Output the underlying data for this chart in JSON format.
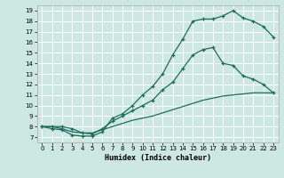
{
  "xlabel": "Humidex (Indice chaleur)",
  "bg_color": "#cce8e0",
  "grid_color": "#ffffff",
  "line_color": "#1e6b5e",
  "xlim": [
    -0.5,
    23.5
  ],
  "ylim": [
    6.5,
    19.5
  ],
  "xticks": [
    0,
    1,
    2,
    3,
    4,
    5,
    6,
    7,
    8,
    9,
    10,
    11,
    12,
    13,
    14,
    15,
    16,
    17,
    18,
    19,
    20,
    21,
    22,
    23
  ],
  "yticks": [
    7,
    8,
    9,
    10,
    11,
    12,
    13,
    14,
    15,
    16,
    17,
    18,
    19
  ],
  "curve1_x": [
    0,
    1,
    2,
    3,
    4,
    5,
    6,
    7,
    8,
    9,
    10,
    11,
    12,
    13,
    14,
    15,
    16,
    17,
    18,
    19,
    20,
    21,
    22,
    23
  ],
  "curve1_y": [
    8.0,
    7.8,
    7.7,
    7.2,
    7.1,
    7.1,
    7.5,
    8.8,
    9.2,
    10.0,
    11.0,
    11.8,
    13.0,
    14.8,
    16.3,
    18.0,
    18.2,
    18.2,
    18.5,
    19.0,
    18.3,
    18.0,
    17.5,
    16.5
  ],
  "curve2_x": [
    0,
    1,
    2,
    3,
    4,
    5,
    6,
    7,
    8,
    9,
    10,
    11,
    12,
    13,
    14,
    15,
    16,
    17,
    18,
    19,
    20,
    21,
    22,
    23
  ],
  "curve2_y": [
    8.0,
    8.0,
    8.0,
    7.8,
    7.4,
    7.3,
    7.8,
    8.5,
    9.0,
    9.5,
    10.0,
    10.5,
    11.5,
    12.2,
    13.5,
    14.8,
    15.3,
    15.5,
    14.0,
    13.8,
    12.8,
    12.5,
    12.0,
    11.2
  ],
  "curve3_x": [
    0,
    1,
    2,
    3,
    4,
    5,
    6,
    7,
    8,
    9,
    10,
    11,
    12,
    13,
    14,
    15,
    16,
    17,
    18,
    19,
    20,
    21,
    22,
    23
  ],
  "curve3_y": [
    8.0,
    8.0,
    7.8,
    7.5,
    7.4,
    7.4,
    7.7,
    8.0,
    8.3,
    8.6,
    8.8,
    9.0,
    9.3,
    9.6,
    9.9,
    10.2,
    10.5,
    10.7,
    10.9,
    11.0,
    11.1,
    11.2,
    11.2,
    11.2
  ]
}
